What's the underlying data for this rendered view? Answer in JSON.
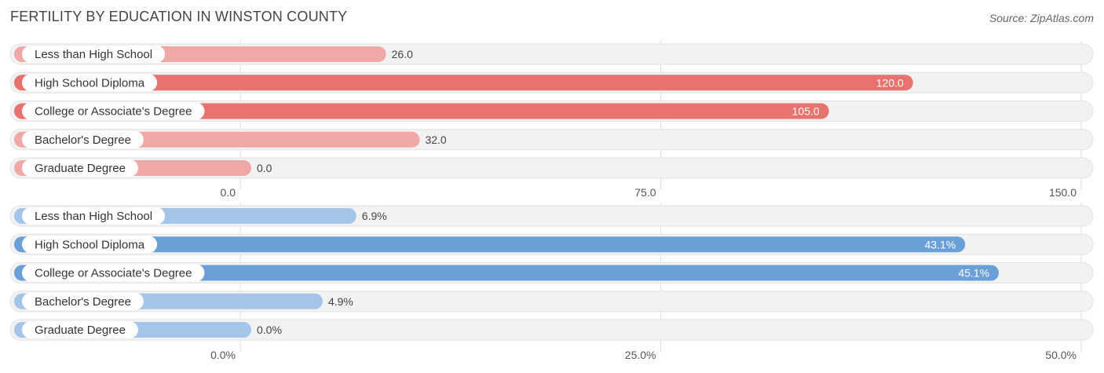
{
  "title": "FERTILITY BY EDUCATION IN WINSTON COUNTY",
  "source": "Source: ZipAtlas.com",
  "chart_data": [
    {
      "type": "bar",
      "orientation": "horizontal",
      "categories": [
        "Less than High School",
        "High School Diploma",
        "College or Associate's Degree",
        "Bachelor's Degree",
        "Graduate Degree"
      ],
      "values": [
        26.0,
        120.0,
        105.0,
        32.0,
        0.0
      ],
      "value_labels": [
        "26.0",
        "120.0",
        "105.0",
        "32.0",
        "0.0"
      ],
      "xlim": [
        0,
        150
      ],
      "ticks": [
        "0.0",
        "75.0",
        "150.0"
      ],
      "color": "#e8736e",
      "color_light": "#f0a8a6",
      "grid": true
    },
    {
      "type": "bar",
      "orientation": "horizontal",
      "categories": [
        "Less than High School",
        "High School Diploma",
        "College or Associate's Degree",
        "Bachelor's Degree",
        "Graduate Degree"
      ],
      "values": [
        6.9,
        43.1,
        45.1,
        4.9,
        0.0
      ],
      "value_labels": [
        "6.9%",
        "43.1%",
        "45.1%",
        "4.9%",
        "0.0%"
      ],
      "xlim": [
        0,
        50
      ],
      "ticks": [
        "0.0%",
        "25.0%",
        "50.0%"
      ],
      "color": "#6a9fd8",
      "color_light": "#a4c4e8",
      "grid": true
    }
  ]
}
